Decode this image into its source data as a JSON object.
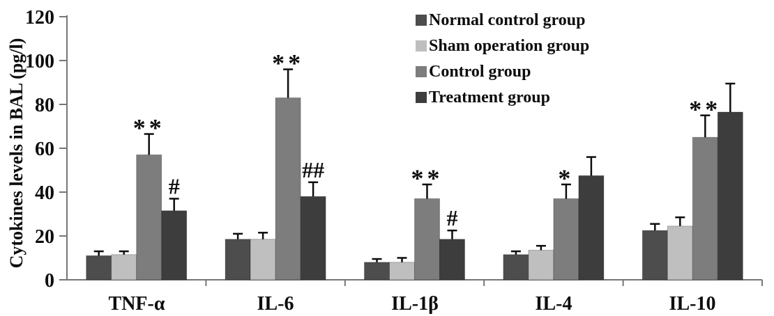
{
  "figure_title": "Cytokine levels bar chart",
  "chart_data": {
    "type": "bar",
    "title": "",
    "xlabel": "",
    "ylabel": "Cytokines levels in BAL (pg/l)",
    "ylim": [
      0,
      120
    ],
    "yticks": [
      0,
      20,
      40,
      60,
      80,
      100,
      120
    ],
    "grid": false,
    "legend_position": "top-right",
    "error_bars": "upper",
    "categories": [
      "TNF-α",
      "IL-6",
      "IL-1β",
      "IL-4",
      "IL-10"
    ],
    "series": [
      {
        "name": "Normal control group",
        "color": "#4d4d4d",
        "values": [
          11,
          18.5,
          8,
          11.5,
          22.5
        ],
        "errors": [
          2,
          2.5,
          1.5,
          1.5,
          3
        ]
      },
      {
        "name": "Sham operation group",
        "color": "#bfbfbf",
        "values": [
          11.5,
          18.5,
          8,
          13.5,
          24.5
        ],
        "errors": [
          1.5,
          3,
          2,
          2,
          4
        ]
      },
      {
        "name": "Control group",
        "color": "#7d7d7d",
        "values": [
          57,
          83,
          37,
          37,
          65
        ],
        "errors": [
          9.5,
          13,
          6.5,
          6.5,
          10
        ]
      },
      {
        "name": "Treatment group",
        "color": "#3d3d3d",
        "values": [
          31.5,
          38,
          18.5,
          47.5,
          76.5
        ],
        "errors": [
          5.5,
          6.5,
          4,
          8.5,
          13
        ]
      }
    ],
    "annotations": [
      {
        "category_index": 0,
        "series_index": 2,
        "label": "**"
      },
      {
        "category_index": 0,
        "series_index": 3,
        "label": "#"
      },
      {
        "category_index": 1,
        "series_index": 2,
        "label": "**"
      },
      {
        "category_index": 1,
        "series_index": 3,
        "label": "##"
      },
      {
        "category_index": 2,
        "series_index": 2,
        "label": "**"
      },
      {
        "category_index": 2,
        "series_index": 3,
        "label": "#"
      },
      {
        "category_index": 3,
        "series_index": 2,
        "label": "*"
      },
      {
        "category_index": 4,
        "series_index": 2,
        "label": "**"
      }
    ]
  }
}
